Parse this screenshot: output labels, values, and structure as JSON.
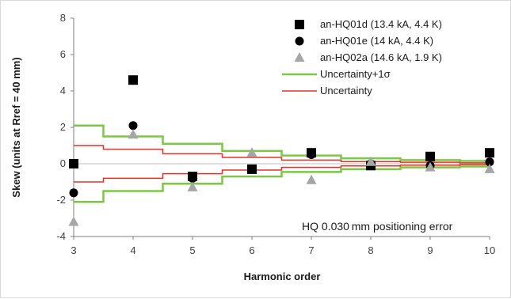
{
  "chart_data": {
    "type": "scatter",
    "xlabel": "Harmonic order",
    "ylabel": "Skew (units at Rref = 40 mm)",
    "xlim": [
      3,
      10
    ],
    "ylim": [
      -4,
      8
    ],
    "x_ticks": [
      "3",
      "4",
      "5",
      "6",
      "7",
      "8",
      "9",
      "10"
    ],
    "y_ticks": [
      "-4",
      "-2",
      "0",
      "2",
      "4",
      "6",
      "8"
    ],
    "grid": false,
    "legend_position": "top-right",
    "annotation": "HQ 0.030 mm positioning error",
    "series": [
      {
        "name": "an-HQ01d (13.4 kA, 4.4 K)",
        "marker": "square",
        "color": "#000000",
        "points": [
          [
            3,
            0.0
          ],
          [
            4,
            4.6
          ],
          [
            5,
            -0.7
          ],
          [
            6,
            -0.3
          ],
          [
            7,
            0.6
          ],
          [
            8,
            -0.1
          ],
          [
            9,
            0.4
          ],
          [
            10,
            0.6
          ]
        ]
      },
      {
        "name": "an-HQ01e (14 kA, 4.4 K)",
        "marker": "circle",
        "color": "#000000",
        "points": [
          [
            3,
            -1.6
          ],
          [
            4,
            2.1
          ],
          [
            5,
            -0.8
          ],
          [
            6,
            -0.3
          ],
          [
            7,
            0.5
          ],
          [
            8,
            0.0
          ],
          [
            9,
            -0.1
          ],
          [
            10,
            0.1
          ]
        ]
      },
      {
        "name": "an-HQ02a (14.6 kA, 1.9 K)",
        "marker": "triangle",
        "color": "#a6a6a6",
        "points": [
          [
            3,
            -3.2
          ],
          [
            4,
            1.6
          ],
          [
            5,
            -1.3
          ],
          [
            6,
            0.6
          ],
          [
            7,
            -0.9
          ],
          [
            8,
            0.1
          ],
          [
            9,
            -0.2
          ],
          [
            10,
            -0.3
          ]
        ]
      },
      {
        "name": "Uncertainty+1σ",
        "type": "step-band",
        "color": "#7ac943",
        "values": [
          2.1,
          1.5,
          1.1,
          0.7,
          0.45,
          0.3,
          0.2,
          0.15
        ]
      },
      {
        "name": "Uncertainty",
        "type": "step-band",
        "color": "#e8302a",
        "values": [
          1.0,
          0.8,
          0.55,
          0.35,
          0.2,
          0.12,
          0.08,
          0.05
        ]
      }
    ]
  }
}
